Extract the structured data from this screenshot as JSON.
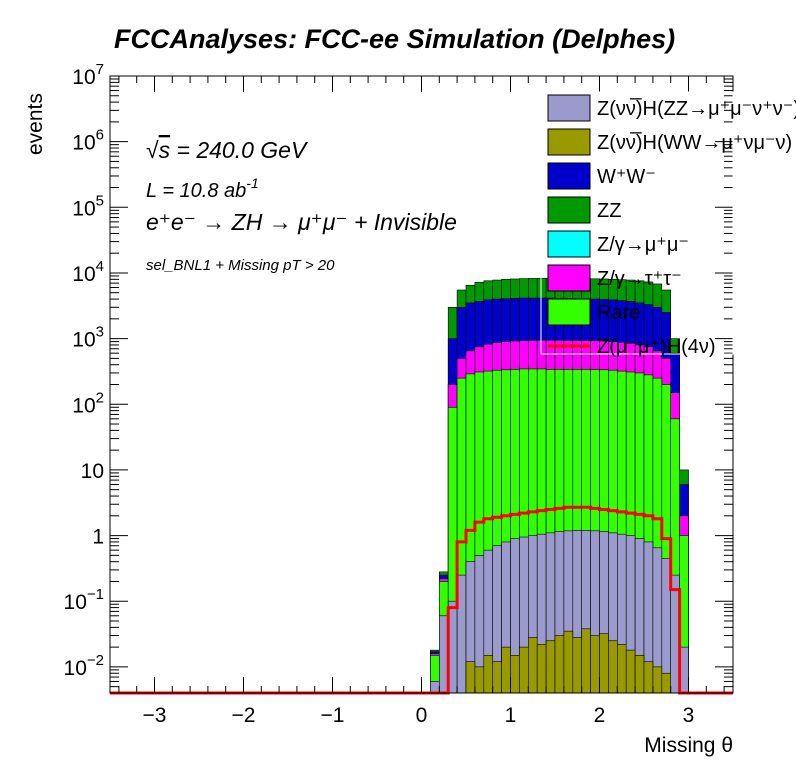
{
  "chart_data": {
    "type": "histogram",
    "title": "FCCAnalyses: FCC-ee Simulation (Delphes)",
    "xlabel": "Missing θ",
    "ylabel": "events",
    "xlim": [
      -3.5,
      3.5
    ],
    "ylim": [
      0.004,
      10000000
    ],
    "yscale": "log",
    "stacked": true,
    "bin_edges_range": [
      0.1,
      3.0
    ],
    "n_bins": 29,
    "x_ticks": [
      {
        "value": -3,
        "label": "−3"
      },
      {
        "value": -2,
        "label": "−2"
      },
      {
        "value": -1,
        "label": "−1"
      },
      {
        "value": 0,
        "label": "0"
      },
      {
        "value": 1,
        "label": "1"
      },
      {
        "value": 2,
        "label": "2"
      },
      {
        "value": 3,
        "label": "3"
      }
    ],
    "y_ticks": [
      {
        "exp": -2,
        "label": "10",
        "sup": "−2"
      },
      {
        "exp": -1,
        "label": "10",
        "sup": "−1"
      },
      {
        "exp": 0,
        "label": "1",
        "sup": ""
      },
      {
        "exp": 1,
        "label": "10",
        "sup": ""
      },
      {
        "exp": 2,
        "label": "10",
        "sup": "2"
      },
      {
        "exp": 3,
        "label": "10",
        "sup": "3"
      },
      {
        "exp": 4,
        "label": "10",
        "sup": "4"
      },
      {
        "exp": 5,
        "label": "10",
        "sup": "5"
      },
      {
        "exp": 6,
        "label": "10",
        "sup": "6"
      },
      {
        "exp": 7,
        "label": "10",
        "sup": "7"
      }
    ],
    "annotations": {
      "sqrt_symbol": "√",
      "sqrt_s": "s",
      "energy": " = 240.0 GeV",
      "lumi_prefix": "L = 10.8 ab",
      "lumi_sup": "-1",
      "process": "e⁺e⁻ → ZH → μ⁺μ⁻ + Invisible",
      "selection": "sel_BNL1 + Missing pT > 20"
    },
    "stack_series": [
      {
        "name": "Z(νν̅)H(ZZ→μ⁺μ⁻ν⁺ν⁻)",
        "color": "#9a9acc",
        "totals": [
          0.006,
          0.06,
          0.1,
          0.25,
          0.4,
          0.5,
          0.6,
          0.7,
          0.8,
          0.9,
          0.95,
          1.0,
          1.05,
          1.1,
          1.15,
          1.18,
          1.2,
          1.2,
          1.18,
          1.15,
          1.1,
          1.05,
          1.0,
          0.9,
          0.8,
          0.65,
          0.45,
          0.25,
          0.02
        ]
      },
      {
        "name": "Z(νν̅)H(WW→μ⁺νμ⁻ν)",
        "color": "#999900",
        "totals": [
          0.0,
          0.0,
          0.0,
          0.0,
          0.012,
          0.01,
          0.015,
          0.012,
          0.02,
          0.015,
          0.02,
          0.028,
          0.022,
          0.025,
          0.03,
          0.035,
          0.028,
          0.038,
          0.03,
          0.032,
          0.025,
          0.022,
          0.018,
          0.015,
          0.012,
          0.01,
          0.008,
          0.0,
          0.0
        ]
      }
    ],
    "envelopes": [
      {
        "name": "Rare",
        "color": "#33ff00",
        "totals": [
          0.015,
          0.2,
          90,
          250,
          290,
          310,
          320,
          330,
          335,
          340,
          345,
          345,
          345,
          340,
          340,
          340,
          340,
          340,
          338,
          335,
          330,
          320,
          310,
          300,
          280,
          250,
          200,
          60,
          1.0
        ]
      },
      {
        "name": "Z/γ→τ⁺τ⁻",
        "color": "#ff00ff",
        "totals": [
          0.016,
          0.22,
          200,
          500,
          650,
          750,
          820,
          870,
          900,
          920,
          930,
          940,
          945,
          945,
          945,
          940,
          940,
          935,
          930,
          920,
          900,
          880,
          850,
          800,
          750,
          650,
          500,
          150,
          2.0
        ]
      },
      {
        "name": "Z/γ→μ⁺μ⁻",
        "color": "#00ffff",
        "totals": [
          0.016,
          0.22,
          200,
          500,
          650,
          750,
          820,
          870,
          900,
          920,
          930,
          940,
          945,
          945,
          945,
          940,
          940,
          935,
          930,
          920,
          900,
          880,
          850,
          800,
          750,
          650,
          500,
          150,
          2.0
        ]
      },
      {
        "name": "W⁺W⁻",
        "color": "#0000cc",
        "totals": [
          0.017,
          0.25,
          1000,
          3000,
          3500,
          3700,
          3900,
          4000,
          4050,
          4100,
          4150,
          4150,
          4150,
          4150,
          4100,
          4100,
          4050,
          4000,
          4000,
          3950,
          3900,
          3800,
          3700,
          3500,
          3300,
          3000,
          2500,
          600,
          6.0
        ]
      },
      {
        "name": "ZZ",
        "color": "#009900",
        "totals": [
          0.018,
          0.28,
          3000,
          5500,
          6500,
          7200,
          7600,
          7800,
          8000,
          8100,
          8200,
          8250,
          8300,
          8300,
          8300,
          8250,
          8200,
          8200,
          8150,
          8100,
          8000,
          7900,
          7800,
          7600,
          7300,
          6800,
          5500,
          1000,
          10.0
        ]
      }
    ],
    "signal": {
      "name": "Z(μ⁻μ⁺)H(4ν)",
      "color": "#ff0000",
      "values": [
        0.0,
        0.0,
        0.08,
        0.8,
        1.2,
        1.6,
        1.8,
        1.9,
        2.0,
        2.1,
        2.2,
        2.3,
        2.4,
        2.5,
        2.6,
        2.7,
        2.7,
        2.7,
        2.6,
        2.5,
        2.4,
        2.3,
        2.2,
        2.1,
        2.0,
        1.8,
        0.9,
        0.15,
        0.0
      ]
    },
    "legend": {
      "position": "top-right",
      "entries": [
        {
          "label": "Z(νν̅)H(ZZ→μ⁺μ⁻ν⁺ν⁻)",
          "color": "#9a9acc",
          "kind": "box"
        },
        {
          "label": "Z(νν̅)H(WW→μ⁺νμ⁻ν)",
          "color": "#999900",
          "kind": "box"
        },
        {
          "label": "W⁺W⁻",
          "color": "#0000cc",
          "kind": "box"
        },
        {
          "label": "ZZ",
          "color": "#009900",
          "kind": "box"
        },
        {
          "label": "Z/γ→μ⁺μ⁻",
          "color": "#00ffff",
          "kind": "box"
        },
        {
          "label": "Z/γ→τ⁺τ⁻",
          "color": "#ff00ff",
          "kind": "box"
        },
        {
          "label": "Rare",
          "color": "#33ff00",
          "kind": "box"
        },
        {
          "label": "Z(μ⁻μ⁺)H(4ν)",
          "color": "#ff0000",
          "kind": "line"
        }
      ]
    }
  }
}
